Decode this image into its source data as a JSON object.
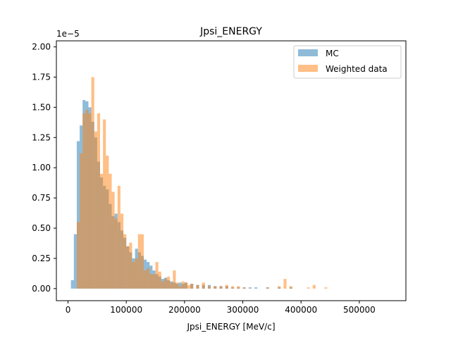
{
  "chart_data": {
    "type": "bar",
    "title": "Jpsi_ENERGY",
    "xlabel": "Jpsi_ENERGY [MeV/c]",
    "ylabel": "",
    "y_offset_label": "1e−5",
    "xlim": [
      -20000,
      580000
    ],
    "ylim": [
      -0.1,
      2.05
    ],
    "x_ticks": [
      0,
      100000,
      200000,
      300000,
      400000,
      500000
    ],
    "x_tick_labels": [
      "0",
      "100000",
      "200000",
      "300000",
      "400000",
      "500000"
    ],
    "y_ticks": [
      0.0,
      0.25,
      0.5,
      0.75,
      1.0,
      1.25,
      1.5,
      1.75,
      2.0
    ],
    "y_tick_labels": [
      "0.00",
      "0.25",
      "0.50",
      "0.75",
      "1.00",
      "1.25",
      "1.50",
      "1.75",
      "2.00"
    ],
    "legend_position": "top-right",
    "grid": false,
    "bin_width": 5000,
    "series": [
      {
        "name": "MC",
        "color": "#1f77b4",
        "opacity": 0.5,
        "x": [
          5000,
          10000,
          15000,
          20000,
          25000,
          30000,
          35000,
          40000,
          45000,
          50000,
          55000,
          60000,
          65000,
          70000,
          75000,
          80000,
          85000,
          90000,
          95000,
          100000,
          105000,
          110000,
          115000,
          120000,
          125000,
          130000,
          135000,
          140000,
          145000,
          150000,
          155000,
          160000,
          165000,
          170000,
          175000,
          180000,
          185000,
          190000,
          195000,
          200000,
          210000,
          220000,
          230000,
          240000,
          250000,
          260000,
          270000,
          280000,
          290000,
          300000,
          310000,
          320000,
          340000,
          360000,
          380000,
          400000,
          420000,
          440000
        ],
        "values": [
          0.07,
          0.45,
          1.22,
          1.35,
          1.56,
          1.55,
          1.5,
          1.38,
          1.25,
          1.05,
          0.92,
          0.85,
          0.82,
          0.7,
          0.6,
          0.62,
          0.55,
          0.48,
          0.42,
          0.35,
          0.3,
          0.25,
          0.33,
          0.3,
          0.27,
          0.24,
          0.22,
          0.19,
          0.15,
          0.12,
          0.1,
          0.08,
          0.09,
          0.07,
          0.06,
          0.05,
          0.04,
          0.05,
          0.04,
          0.05,
          0.04,
          0.03,
          0.03,
          0.03,
          0.02,
          0.02,
          0.02,
          0.01,
          0.01,
          0.01,
          0.01,
          0.01,
          0.01,
          0.01,
          0.01,
          0.0,
          0.0,
          0.0
        ]
      },
      {
        "name": "Weighted data",
        "color": "#ff7f0e",
        "opacity": 0.5,
        "x": [
          15000,
          20000,
          25000,
          30000,
          35000,
          40000,
          45000,
          50000,
          55000,
          60000,
          65000,
          70000,
          75000,
          80000,
          85000,
          90000,
          95000,
          100000,
          105000,
          110000,
          115000,
          120000,
          125000,
          130000,
          135000,
          140000,
          145000,
          150000,
          155000,
          160000,
          165000,
          170000,
          175000,
          180000,
          185000,
          190000,
          195000,
          200000,
          205000,
          210000,
          220000,
          230000,
          240000,
          250000,
          260000,
          270000,
          280000,
          290000,
          300000,
          340000,
          360000,
          370000,
          380000,
          410000,
          420000,
          440000
        ],
        "values": [
          0.55,
          1.12,
          1.45,
          1.48,
          1.45,
          1.75,
          1.3,
          1.45,
          0.95,
          1.4,
          1.1,
          0.95,
          0.8,
          0.58,
          0.85,
          0.62,
          0.45,
          0.35,
          0.38,
          0.22,
          0.25,
          0.45,
          0.45,
          0.15,
          0.17,
          0.12,
          0.12,
          0.22,
          0.14,
          0.06,
          0.08,
          0.1,
          0.05,
          0.15,
          0.05,
          0.02,
          0.06,
          0.05,
          0.03,
          0.04,
          0.03,
          0.05,
          0.02,
          0.02,
          0.02,
          0.03,
          0.02,
          0.02,
          0.01,
          0.01,
          0.02,
          0.08,
          0.02,
          0.01,
          0.03,
          0.01
        ]
      }
    ]
  }
}
